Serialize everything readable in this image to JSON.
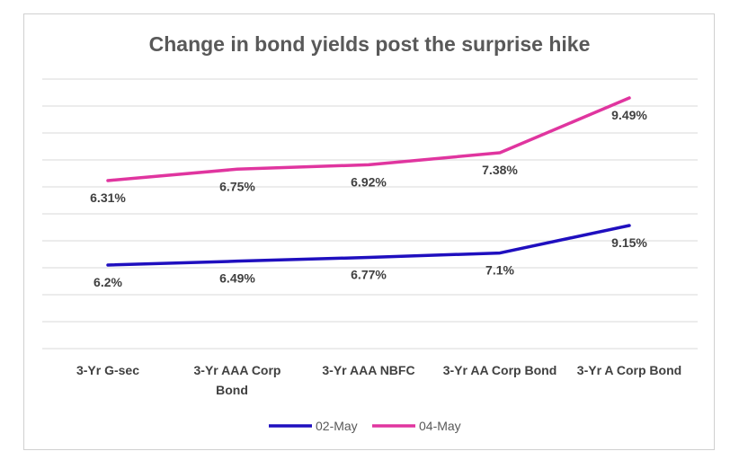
{
  "chart_data": {
    "type": "line",
    "title": "Change in bond yields post the surprise hike",
    "xlabel": "",
    "ylabel": "",
    "categories": [
      "3-Yr G-sec",
      "3-Yr AAA Corp Bond",
      "3-Yr AAA NBFC",
      "3-Yr AA Corp Bond",
      "3-Yr A Corp Bond"
    ],
    "series": [
      {
        "name": "02-May",
        "values": [
          6.2,
          6.49,
          6.77,
          7.1,
          9.15
        ],
        "labels": [
          "6.2%",
          "6.49%",
          "6.77%",
          "7.1%",
          "9.15%"
        ],
        "color": "#1f0fbf"
      },
      {
        "name": "04-May",
        "values": [
          6.31,
          6.75,
          6.92,
          7.38,
          9.49
        ],
        "labels": [
          "6.31%",
          "6.75%",
          "6.92%",
          "7.38%",
          "9.49%"
        ],
        "color": "#e0359f"
      }
    ],
    "grid": true,
    "legend": "bottom"
  }
}
